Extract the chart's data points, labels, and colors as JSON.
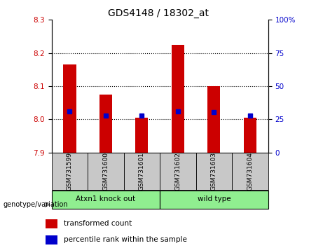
{
  "title": "GDS4148 / 18302_at",
  "samples": [
    "GSM731599",
    "GSM731600",
    "GSM731601",
    "GSM731602",
    "GSM731603",
    "GSM731604"
  ],
  "bar_bottom": 7.9,
  "bar_tops": [
    8.165,
    8.075,
    8.005,
    8.225,
    8.1,
    8.005
  ],
  "blue_values": [
    8.024,
    8.012,
    8.012,
    8.024,
    8.022,
    8.012
  ],
  "ylim_left": [
    7.9,
    8.3
  ],
  "ylim_right": [
    0,
    100
  ],
  "yticks_left": [
    7.9,
    8.0,
    8.1,
    8.2,
    8.3
  ],
  "yticks_right": [
    0,
    25,
    50,
    75,
    100
  ],
  "ytick_labels_right": [
    "0",
    "25",
    "50",
    "75",
    "100%"
  ],
  "group1_label": "Atxn1 knock out",
  "group2_label": "wild type",
  "group_color": "#90ee90",
  "bar_color": "#cc0000",
  "blue_color": "#0000cc",
  "bg_plot": "#ffffff",
  "bg_xtick": "#c8c8c8",
  "genotype_label": "genotype/variation",
  "legend_red": "transformed count",
  "legend_blue": "percentile rank within the sample",
  "left_tick_color": "#cc0000",
  "right_tick_color": "#0000cc",
  "bar_width": 0.35
}
